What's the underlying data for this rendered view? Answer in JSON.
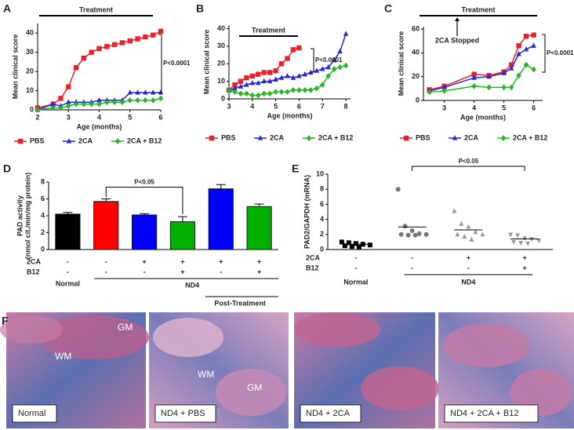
{
  "chart_data": [
    {
      "type": "line",
      "label": "A",
      "xlabel": "Age (months)",
      "ylabel": "Mean clinical score",
      "treatment": "Treatment",
      "pvalue": "P<0.0001",
      "x": [
        2,
        2.5,
        2.75,
        3,
        3.25,
        3.5,
        3.75,
        4,
        4.25,
        4.5,
        4.75,
        5,
        5.25,
        5.5,
        5.75,
        6
      ],
      "xlim": [
        2,
        6
      ],
      "xticks": [
        2,
        3,
        4,
        5,
        6
      ],
      "ylim": [
        0,
        45
      ],
      "yticks": [
        0,
        10,
        20,
        30,
        40
      ],
      "series": [
        {
          "name": "PBS",
          "color": "#e8212a",
          "marker": "square",
          "values": [
            1,
            3,
            6,
            12,
            22,
            27,
            30,
            32,
            33,
            34,
            35,
            36,
            37,
            38,
            39,
            41
          ]
        },
        {
          "name": "2CA",
          "color": "#2424d8",
          "marker": "triangle",
          "values": [
            0,
            3,
            2,
            4,
            4,
            4,
            4,
            5,
            5,
            5,
            5,
            9,
            9,
            9,
            9,
            9
          ]
        },
        {
          "name": "2CA + B12",
          "color": "#22b822",
          "marker": "diamond",
          "values": [
            0,
            1,
            1,
            2,
            3,
            3,
            3,
            3,
            4,
            4,
            4,
            5,
            5,
            5,
            5,
            6
          ]
        }
      ]
    },
    {
      "type": "line",
      "label": "B",
      "xlabel": "Age (months)",
      "ylabel": "Mean clinical score",
      "treatment": "Treatment",
      "pvalue": "P<0.0001",
      "x": [
        3,
        3.25,
        3.5,
        3.75,
        4,
        4.25,
        4.5,
        4.75,
        5,
        5.25,
        5.5,
        5.75,
        6,
        6.25,
        6.5,
        6.75,
        7,
        7.25,
        7.5,
        7.75,
        8
      ],
      "xlim": [
        3,
        8.2
      ],
      "xticks": [
        3,
        4,
        5,
        6,
        7,
        8
      ],
      "ylim": [
        0,
        42
      ],
      "yticks": [
        0,
        10,
        20,
        30,
        40
      ],
      "series": [
        {
          "name": "PBS",
          "color": "#e8212a",
          "marker": "square",
          "values": [
            5,
            8,
            10,
            12,
            13,
            14,
            15,
            15,
            16,
            20,
            23,
            28,
            29,
            null,
            null,
            null,
            null,
            null,
            null,
            null,
            null
          ]
        },
        {
          "name": "2CA",
          "color": "#2424d8",
          "marker": "triangle",
          "values": [
            5,
            6,
            7,
            8,
            9,
            9,
            10,
            10,
            11,
            12,
            13,
            12,
            13,
            14,
            15,
            16,
            17,
            18,
            22,
            27,
            37
          ]
        },
        {
          "name": "2CA + B12",
          "color": "#22b822",
          "marker": "diamond",
          "values": [
            5,
            4,
            3,
            3,
            2,
            2,
            3,
            3,
            4,
            4,
            4,
            5,
            5,
            5,
            5,
            6,
            8,
            13,
            17,
            18,
            19
          ]
        }
      ]
    },
    {
      "type": "line",
      "label": "C",
      "xlabel": "Age (months)",
      "ylabel": "Mean clinical score",
      "treatment": "Treatment",
      "pvalue": "P<0.0001",
      "stopped": "2CA Stopped",
      "x": [
        2.5,
        3,
        4,
        4.5,
        5,
        5.25,
        5.5,
        5.75,
        6
      ],
      "xlim": [
        2.3,
        6.3
      ],
      "xticks": [
        3,
        4,
        5,
        6
      ],
      "ylim": [
        0,
        62
      ],
      "yticks": [
        0,
        20,
        40,
        60
      ],
      "series": [
        {
          "name": "PBS",
          "color": "#e8212a",
          "marker": "square",
          "values": [
            9,
            12,
            22,
            21,
            24,
            30,
            46,
            54,
            55
          ]
        },
        {
          "name": "2CA",
          "color": "#2424d8",
          "marker": "triangle",
          "values": [
            8,
            11,
            19,
            20,
            23,
            27,
            39,
            43,
            46
          ]
        },
        {
          "name": "2CA + B12",
          "color": "#22b822",
          "marker": "diamond",
          "values": [
            7,
            8,
            12,
            11,
            11,
            11,
            21,
            30,
            26
          ]
        }
      ]
    },
    {
      "type": "bar",
      "label": "D",
      "ylabel": [
        "PAD activity",
        "(nmol cit./min/mg protein)"
      ],
      "pvalue": "P<0.05",
      "values": [
        4.2,
        5.7,
        4.1,
        3.3,
        7.2,
        5.1
      ],
      "errors": [
        0.2,
        0.3,
        0.15,
        0.6,
        0.5,
        0.3
      ],
      "colors": [
        "#000000",
        "#ff0000",
        "#0000ff",
        "#00b000",
        "#0000ff",
        "#00b000"
      ],
      "ylim": [
        0,
        8
      ],
      "yticks": [
        0,
        2,
        4,
        6,
        8
      ],
      "rows": [
        {
          "name": "2CA",
          "signs": [
            "-",
            "-",
            "+",
            "+",
            "+",
            "+"
          ]
        },
        {
          "name": "B12",
          "signs": [
            "-",
            "-",
            "-",
            "+",
            "-",
            "+"
          ]
        }
      ],
      "groups": [
        "Normal",
        "ND4",
        "Post-Treatment"
      ]
    },
    {
      "type": "strip",
      "label": "E",
      "ylabel": "PAD2/GAPDH (mRNA)",
      "pvalue": "P<0.05",
      "ylim": [
        0,
        10
      ],
      "yticks": [
        0,
        2,
        4,
        6,
        8,
        10
      ],
      "points": [
        {
          "color": "#000000",
          "marker": "square",
          "values": [
            1.0,
            0.9,
            0.8,
            0.7,
            0.6,
            0.5,
            0.4,
            0.3
          ],
          "mean": 0.7
        },
        {
          "color": "#777777",
          "marker": "circle",
          "values": [
            8,
            3.1,
            2.5,
            2.1,
            2,
            2,
            1.9,
            1.9
          ],
          "mean": 3
        },
        {
          "color": "#999999",
          "marker": "triangle",
          "values": [
            5.1,
            3.4,
            3,
            2.3,
            2,
            2,
            1.7,
            1.3
          ],
          "mean": 2.6
        },
        {
          "color": "#999999",
          "marker": "triangle-down",
          "values": [
            2,
            1.9,
            1.5,
            1.4,
            1.2,
            1,
            0.9,
            0.8
          ],
          "mean": 1.4
        }
      ],
      "rows": [
        {
          "name": "2CA",
          "signs": [
            "-",
            "-",
            "+",
            "+"
          ]
        },
        {
          "name": "B12",
          "signs": [
            "-",
            "-",
            "-",
            "+"
          ]
        }
      ],
      "groups": [
        "Normal",
        "ND4"
      ]
    }
  ],
  "panel_f": {
    "label": "F",
    "images": [
      {
        "caption": "Normal",
        "annotations": [
          "GM",
          "WM"
        ]
      },
      {
        "caption": "ND4 + PBS",
        "annotations": [
          "WM",
          "GM"
        ]
      },
      {
        "caption": "ND4 + 2CA",
        "annotations": []
      },
      {
        "caption": "ND4 + 2CA + B12",
        "annotations": []
      }
    ]
  }
}
